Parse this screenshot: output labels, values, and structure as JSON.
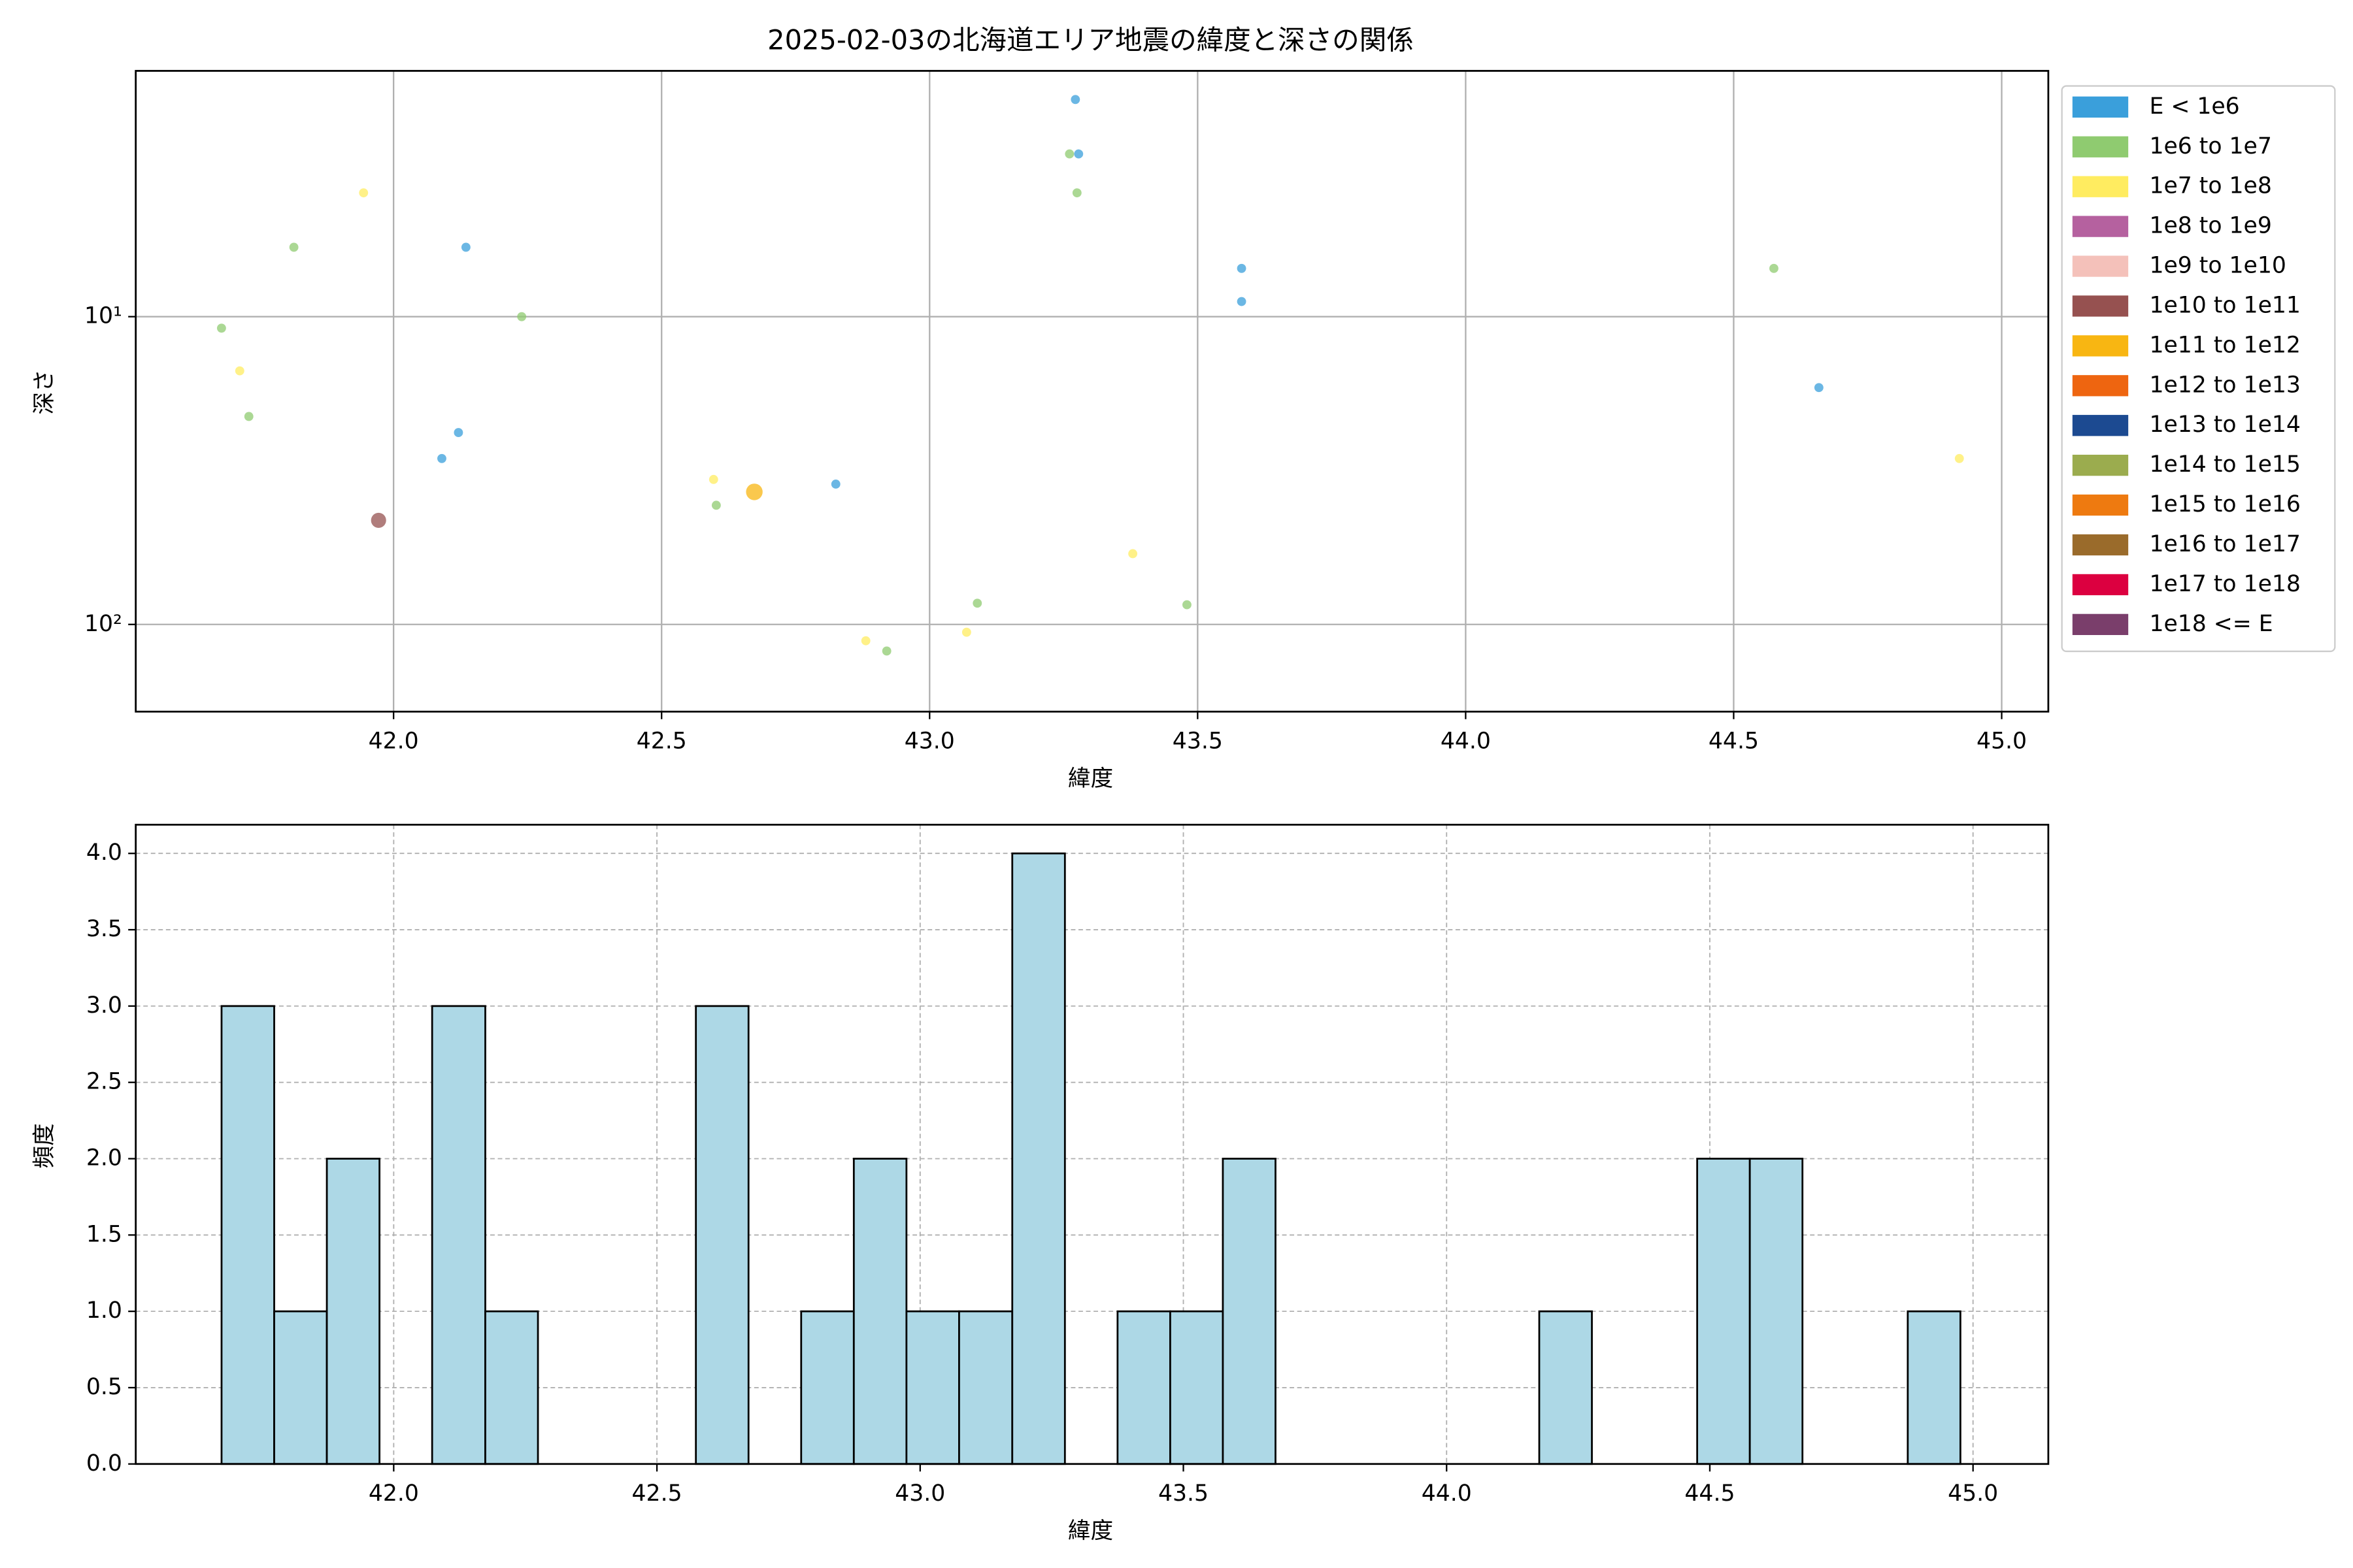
{
  "chart_data": [
    {
      "type": "scatter",
      "title": "2025-02-03の北海道エリア地震の緯度と深さの関係",
      "xlabel": "緯度",
      "ylabel": "深さ",
      "yscale": "log",
      "yinverted": true,
      "grid": true,
      "legend": "outside-upper-right",
      "xlim": [
        41.519,
        45.087
      ],
      "ylim": [
        1.59,
        192
      ],
      "xticks": [
        {
          "value": 42.0,
          "label": "42.0"
        },
        {
          "value": 42.5,
          "label": "42.5"
        },
        {
          "value": 43.0,
          "label": "43.0"
        },
        {
          "value": 43.5,
          "label": "43.5"
        },
        {
          "value": 44.0,
          "label": "44.0"
        },
        {
          "value": 44.5,
          "label": "44.5"
        },
        {
          "value": 45.0,
          "label": "45.0"
        }
      ],
      "yticks": [
        {
          "value": 10,
          "label": "10¹"
        },
        {
          "value": 100,
          "label": "10²"
        }
      ],
      "series": [
        {
          "name": "E < 1e6",
          "color": "#3a9fdb",
          "marker_size": 3,
          "x": [
            43.272,
            43.278,
            42.135,
            43.582,
            43.582,
            44.659,
            42.121,
            42.09,
            42.825
          ],
          "values": [
            1.97,
            2.96,
            5.95,
            6.97,
            8.93,
            17.0,
            23.8,
            28.9,
            35.0
          ]
        },
        {
          "name": "1e6 to 1e7",
          "color": "#8fcb70",
          "marker_size": 3,
          "x": [
            43.261,
            43.275,
            41.814,
            44.575,
            42.239,
            41.679,
            41.73,
            42.602,
            43.48,
            43.089,
            42.92
          ],
          "values": [
            2.96,
            3.96,
            5.95,
            6.97,
            10,
            10.9,
            21.1,
            41.0,
            86.3,
            85.3,
            122
          ]
        },
        {
          "name": "1e7 to 1e8",
          "color": "#ffec60",
          "marker_size": 3,
          "x": [
            41.944,
            41.713,
            44.921,
            42.597,
            43.379,
            43.069,
            42.881
          ],
          "values": [
            3.96,
            15.0,
            28.9,
            33.8,
            58.9,
            106,
            113
          ]
        },
        {
          "name": "1e8 to 1e9",
          "color": "#b5619f",
          "marker_size": 3,
          "x": [],
          "values": []
        },
        {
          "name": "1e9 to 1e10",
          "color": "#f4c1ba",
          "marker_size": 3,
          "x": [],
          "values": []
        },
        {
          "name": "1e10 to 1e11",
          "color": "#965150",
          "marker_size": 5,
          "x": [
            41.972
          ],
          "values": [
            45.9
          ]
        },
        {
          "name": "1e11 to 1e12",
          "color": "#f8b612",
          "marker_size": 5.5,
          "x": [
            42.673
          ],
          "values": [
            37.1
          ]
        },
        {
          "name": "1e12 to 1e13",
          "color": "#ee6510",
          "marker_size": 6,
          "x": [],
          "values": []
        },
        {
          "name": "1e13 to 1e14",
          "color": "#1c4a91",
          "marker_size": 6,
          "x": [],
          "values": []
        },
        {
          "name": "1e14 to 1e15",
          "color": "#9bac4e",
          "marker_size": 6,
          "x": [],
          "values": []
        },
        {
          "name": "1e15 to 1e16",
          "color": "#ee7a10",
          "marker_size": 6,
          "x": [],
          "values": []
        },
        {
          "name": "1e16 to 1e17",
          "color": "#9a6b2b",
          "marker_size": 6,
          "x": [],
          "values": []
        },
        {
          "name": "1e17 to 1e18",
          "color": "#dc0040",
          "marker_size": 6,
          "x": [],
          "values": []
        },
        {
          "name": "1e18 <= E",
          "color": "#7a3e6b",
          "marker_size": 6,
          "x": [],
          "values": []
        }
      ]
    },
    {
      "type": "histogram",
      "xlabel": "緯度",
      "ylabel": "頻度",
      "color": "#add8e6",
      "grid": true,
      "xlim": [
        41.51,
        45.143
      ],
      "ylim": [
        0,
        4.188
      ],
      "xticks": [
        {
          "value": 42.0,
          "label": "42.0"
        },
        {
          "value": 42.5,
          "label": "42.5"
        },
        {
          "value": 43.0,
          "label": "43.0"
        },
        {
          "value": 43.5,
          "label": "43.5"
        },
        {
          "value": 44.0,
          "label": "44.0"
        },
        {
          "value": 44.5,
          "label": "44.5"
        },
        {
          "value": 45.0,
          "label": "45.0"
        }
      ],
      "yticks": [
        {
          "value": 0,
          "label": "0.0"
        },
        {
          "value": 0.5,
          "label": "0.5"
        },
        {
          "value": 1,
          "label": "1.0"
        },
        {
          "value": 1.5,
          "label": "1.5"
        },
        {
          "value": 2,
          "label": "2.0"
        },
        {
          "value": 2.5,
          "label": "2.5"
        },
        {
          "value": 3,
          "label": "3.0"
        },
        {
          "value": 3.5,
          "label": "3.5"
        },
        {
          "value": 4,
          "label": "4.0"
        }
      ],
      "bins": [
        41.673,
        41.773,
        41.873,
        41.973,
        42.073,
        42.174,
        42.274,
        42.374,
        42.474,
        42.574,
        42.674,
        42.774,
        42.874,
        42.974,
        43.074,
        43.175,
        43.275,
        43.375,
        43.475,
        43.575,
        43.675,
        43.775,
        43.875,
        43.975,
        44.075,
        44.176,
        44.276,
        44.376,
        44.476,
        44.576,
        44.676,
        44.776,
        44.876,
        44.976
      ],
      "values": [
        3,
        1,
        2,
        0,
        3,
        1,
        0,
        0,
        0,
        3,
        0,
        1,
        2,
        1,
        1,
        4,
        0,
        1,
        1,
        2,
        0,
        0,
        0,
        0,
        0,
        1,
        0,
        0,
        2,
        2,
        0,
        0,
        1
      ]
    }
  ]
}
